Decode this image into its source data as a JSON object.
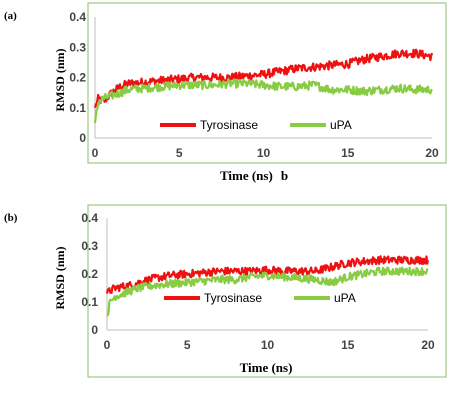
{
  "chart_data": [
    {
      "panel_label": "(a)",
      "type": "line",
      "xlabel": "Time (ns)",
      "xlabel_suffix": "b",
      "ylabel": "RMSD (nm)",
      "xlim": [
        0,
        20
      ],
      "ylim": [
        0,
        0.4
      ],
      "xticks": [
        "0",
        "5",
        "10",
        "15",
        "20"
      ],
      "yticks": [
        "0",
        "0.1",
        "0.2",
        "0.3",
        "0.4"
      ],
      "grid": false,
      "legend_position": "bottom-center",
      "series": [
        {
          "name": "Tyrosinase",
          "color": "#ee1111",
          "x": [
            0,
            0.2,
            0.5,
            1,
            1.5,
            2,
            3,
            4,
            5,
            6,
            7,
            8,
            9,
            10,
            11,
            12,
            13,
            14,
            15,
            16,
            17,
            18,
            19,
            20
          ],
          "y": [
            0.1,
            0.13,
            0.12,
            0.15,
            0.17,
            0.18,
            0.185,
            0.19,
            0.195,
            0.2,
            0.2,
            0.2,
            0.205,
            0.21,
            0.22,
            0.23,
            0.235,
            0.24,
            0.245,
            0.26,
            0.27,
            0.28,
            0.28,
            0.27
          ]
        },
        {
          "name": "uPA",
          "color": "#88cc44",
          "x": [
            0,
            0.2,
            0.5,
            1,
            1.5,
            2,
            3,
            4,
            5,
            6,
            7,
            8,
            9,
            10,
            11,
            12,
            13,
            14,
            15,
            16,
            17,
            18,
            19,
            20
          ],
          "y": [
            0.05,
            0.12,
            0.13,
            0.14,
            0.15,
            0.16,
            0.165,
            0.17,
            0.175,
            0.175,
            0.175,
            0.18,
            0.18,
            0.175,
            0.17,
            0.17,
            0.175,
            0.16,
            0.16,
            0.155,
            0.16,
            0.165,
            0.16,
            0.16
          ]
        }
      ]
    },
    {
      "panel_label": "(b)",
      "type": "line",
      "xlabel": "Time (ns)",
      "ylabel": "RMSD (nm)",
      "xlim": [
        0,
        20
      ],
      "ylim": [
        0,
        0.4
      ],
      "xticks": [
        "0",
        "5",
        "10",
        "15",
        "20"
      ],
      "yticks": [
        "0",
        "0.1",
        "0.2",
        "0.3",
        "0.4"
      ],
      "grid": false,
      "legend_position": "bottom-center",
      "series": [
        {
          "name": "Tyrosinase",
          "color": "#ee1111",
          "x": [
            0,
            0.2,
            0.5,
            1,
            1.5,
            2,
            3,
            4,
            5,
            6,
            7,
            8,
            9,
            10,
            11,
            12,
            13,
            14,
            15,
            16,
            17,
            18,
            19,
            20
          ],
          "y": [
            0.13,
            0.14,
            0.15,
            0.155,
            0.16,
            0.17,
            0.185,
            0.195,
            0.2,
            0.205,
            0.21,
            0.21,
            0.21,
            0.215,
            0.21,
            0.21,
            0.21,
            0.225,
            0.24,
            0.245,
            0.25,
            0.25,
            0.25,
            0.25
          ]
        },
        {
          "name": "uPA",
          "color": "#88cc44",
          "x": [
            0,
            0.2,
            0.5,
            1,
            1.5,
            2,
            3,
            4,
            5,
            6,
            7,
            8,
            9,
            10,
            11,
            12,
            13,
            14,
            15,
            16,
            17,
            18,
            19,
            20
          ],
          "y": [
            0.05,
            0.1,
            0.12,
            0.13,
            0.14,
            0.15,
            0.16,
            0.165,
            0.17,
            0.175,
            0.18,
            0.18,
            0.19,
            0.195,
            0.19,
            0.185,
            0.18,
            0.17,
            0.19,
            0.2,
            0.21,
            0.21,
            0.21,
            0.21
          ]
        }
      ]
    }
  ]
}
